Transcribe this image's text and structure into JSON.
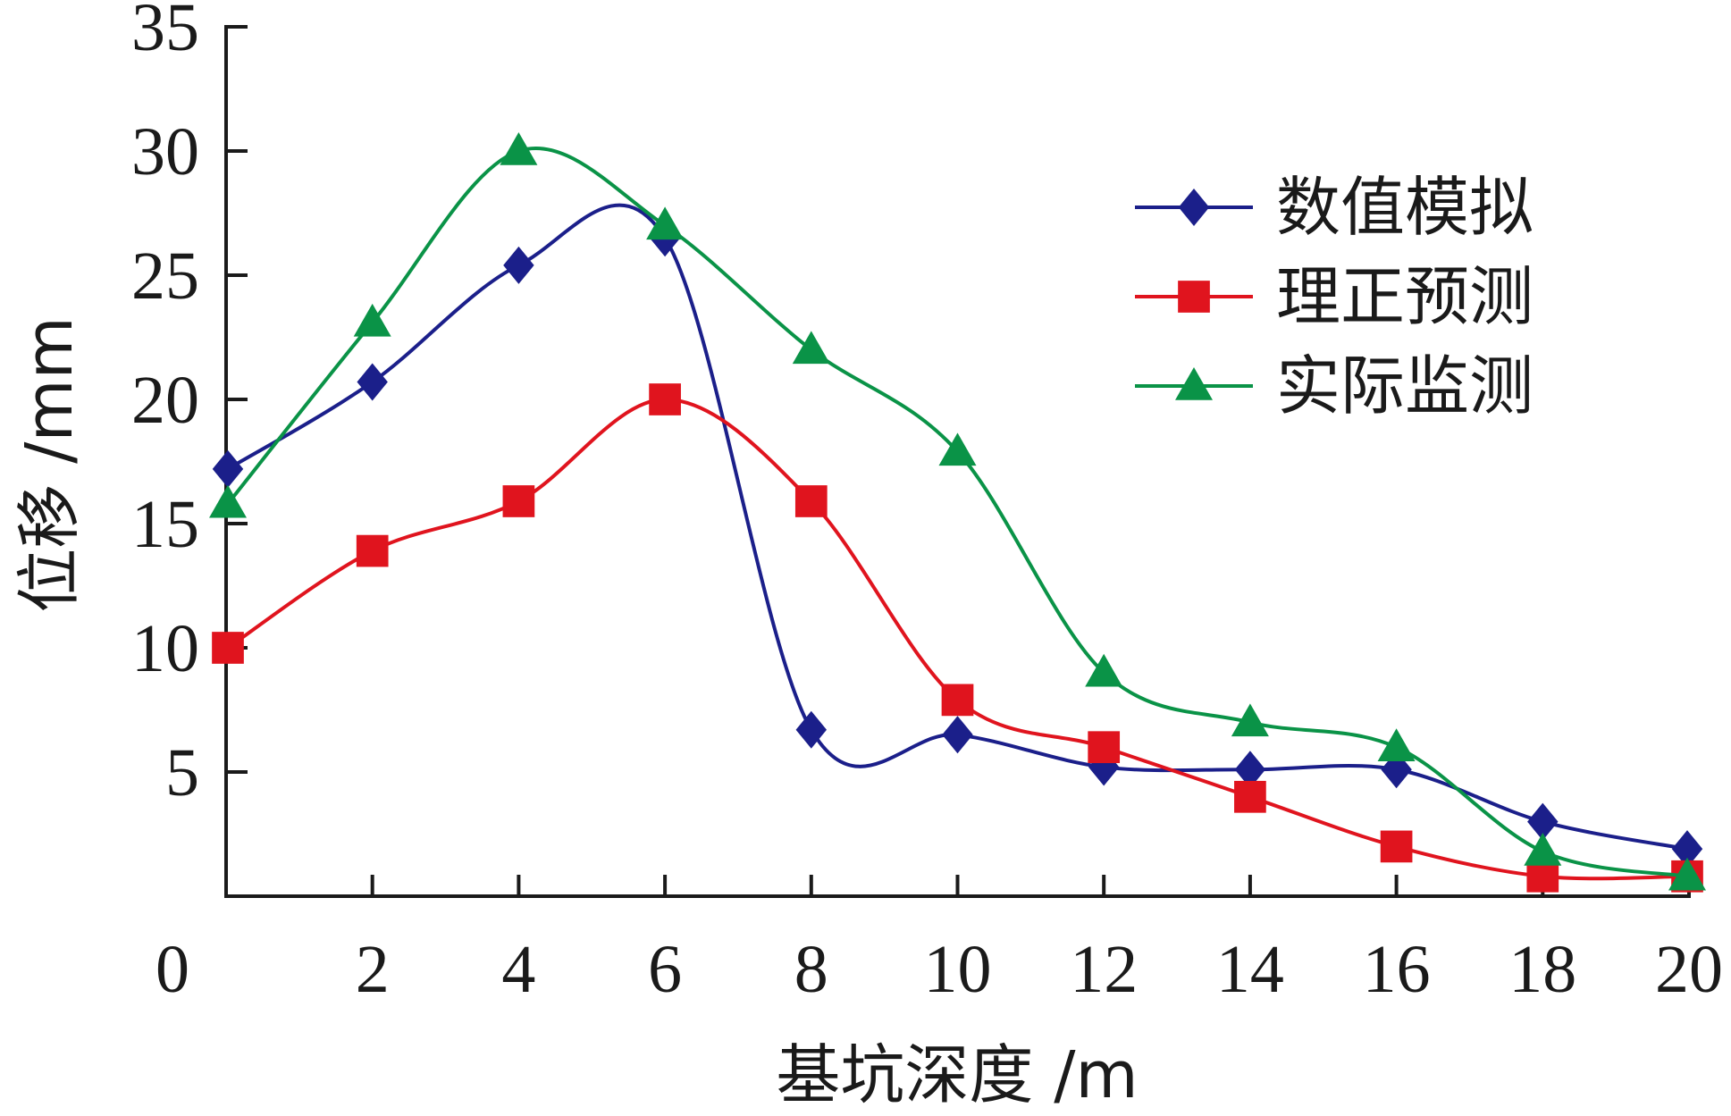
{
  "chart_data": {
    "type": "line",
    "xlabel": "基坑深度 /m",
    "ylabel": "位移 /mm",
    "xlim": [
      0,
      20
    ],
    "ylim": [
      0,
      35
    ],
    "x_tick_labels": [
      "0",
      "2",
      "4",
      "6",
      "8",
      "10",
      "12",
      "14",
      "16",
      "18",
      "20"
    ],
    "y_tick_labels": [
      "5",
      "10",
      "15",
      "20",
      "25",
      "30",
      "35"
    ],
    "grid": false,
    "legend_position": "top-right",
    "series": [
      {
        "name": "数值模拟",
        "color": "#1b1f8a",
        "marker": "diamond",
        "x": [
          0,
          2,
          4,
          6,
          8,
          10,
          12,
          14,
          16,
          18,
          20
        ],
        "y": [
          17.2,
          20.7,
          25.4,
          26.5,
          6.7,
          6.5,
          5.2,
          5.1,
          5.1,
          3.0,
          1.9
        ]
      },
      {
        "name": "理正预测",
        "color": "#e0141e",
        "marker": "square",
        "x": [
          0,
          2,
          4,
          6,
          8,
          10,
          12,
          14,
          16,
          18,
          20
        ],
        "y": [
          10.0,
          13.9,
          15.9,
          20.0,
          15.9,
          7.9,
          6.0,
          4.0,
          2.0,
          0.8,
          0.8
        ]
      },
      {
        "name": "实际监测",
        "color": "#0a9347",
        "marker": "triangle",
        "x": [
          0,
          2,
          4,
          6,
          8,
          10,
          12,
          14,
          16,
          18,
          20
        ],
        "y": [
          15.8,
          23.1,
          30.0,
          27.0,
          22.0,
          17.9,
          9.0,
          7.0,
          6.0,
          1.8,
          0.8
        ]
      }
    ]
  }
}
